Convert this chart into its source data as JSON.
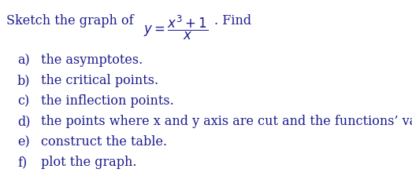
{
  "title_prefix": "Sketch the graph of  ",
  "find_text": ". Find",
  "items": [
    [
      "a)",
      "the asymptotes."
    ],
    [
      "b)",
      "the critical points."
    ],
    [
      "c)",
      "the inflection points."
    ],
    [
      "d)",
      "the points where x and y axis are cut and the functions’ value."
    ],
    [
      "e)",
      "construct the table."
    ],
    [
      "f)",
      "plot the graph."
    ]
  ],
  "text_color": "#1c1c8f",
  "background_color": "#ffffff",
  "font_size": 11.5,
  "figwidth": 5.23,
  "figheight": 2.3,
  "dpi": 100
}
